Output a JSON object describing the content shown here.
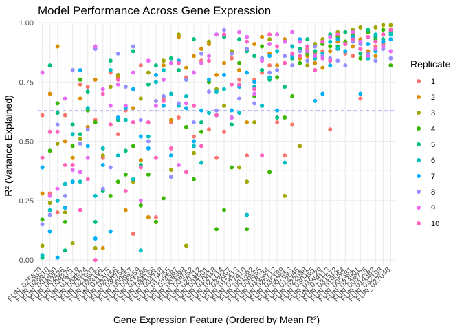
{
  "chart_data": {
    "type": "scatter",
    "title": "Model Performance Across Gene Expression",
    "xlabel": "Gene Expression Feature (Ordered by Mean R²)",
    "ylabel": "R² (Variance Explained)",
    "ylim": [
      -0.02,
      1.0
    ],
    "yticks": [
      0.0,
      0.25,
      0.5,
      0.75,
      1.0
    ],
    "ytick_labels": [
      "0.00",
      "0.25",
      "0.50",
      "0.75",
      "1.00"
    ],
    "reference_line": {
      "y": 0.628,
      "style": "dashed",
      "color": "#0000ff"
    },
    "legend": {
      "title": "Replicate",
      "position": "right"
    },
    "grid": true,
    "categories": [
      "FUN_025670",
      "FUN_028610",
      "FUN_001490",
      "FUN_002426",
      "FUN_009276",
      "FUN_013219",
      "FUN_004624",
      "FUN_021903",
      "FUN_028166",
      "FUN_011575",
      "FUN_020156",
      "FUN_030754",
      "FUN_000657",
      "FUN_006659",
      "FUN_015096",
      "FUN_034166",
      "FUN_004718",
      "FUN_017255",
      "FUN_024587",
      "FUN_003598",
      "FUN_008052",
      "FUN_020312",
      "FUN_004901",
      "FUN_010418",
      "FUN_021714",
      "FUN_033067",
      "FUN_015413",
      "FUN_027410",
      "FUN_001892",
      "FUN_009655",
      "FUN_018234",
      "FUN_026712",
      "FUN_035189",
      "FUN_007653",
      "FUN_012946",
      "FUN_022038",
      "FUN_030465",
      "FUN_016729",
      "FUN_029113",
      "FUN_031572",
      "FUN_019064",
      "FUN_005381",
      "FUN_023901",
      "FUN_008726",
      "FUN_014382",
      "FUN_032198",
      "FUN_027048"
    ],
    "visible_tick_labels": [
      "FUN_025670",
      "FUN_028610",
      "FUN_001490",
      "FUN_002426",
      "FUN_009276",
      "FUN_013219",
      "FUN_004624",
      "FUN_021903",
      "FUN_028166",
      "FUN_011575",
      "FUN_020156",
      "FUN_030754",
      "FUN_000657",
      "FUN_006659",
      "FUN_015096",
      "FUN_034166",
      "FUN_004718",
      "FUN_017255",
      "FUN_024587",
      "FUN_003598",
      "FUN_008052",
      "FUN_020312",
      "FUN_004901",
      "FUN_010418",
      "FUN_021714",
      "FUN_033067",
      "FUN_015413",
      "FUN_027410",
      "FUN_001892",
      "FUN_009655",
      "FUN_018234",
      "FUN_026712",
      "FUN_035189",
      "FUN_007653",
      "FUN_012946",
      "FUN_022038",
      "FUN_030465",
      "FUN_016729",
      "FUN_029113",
      "FUN_031572",
      "FUN_019064",
      "FUN_005381",
      "FUN_023901",
      "FUN_008726",
      "FUN_014382",
      "FUN_032198",
      "FUN_027048"
    ],
    "series": [
      {
        "name": "1",
        "color": "#F8766D",
        "values": [
          0.61,
          0.28,
          0.2,
          0.61,
          0.48,
          0.74,
          0.73,
          0.59,
          0.43,
          0.79,
          0.53,
          0.63,
          0.11,
          0.82,
          0.18,
          0.18,
          0.68,
          0.58,
          0.6,
          0.77,
          0.52,
          0.84,
          0.55,
          0.43,
          0.54,
          0.85,
          0.76,
          0.44,
          0.76,
          0.79,
          0.82,
          0.58,
          0.44,
          0.57,
          0.48,
          0.89,
          0.87,
          0.88,
          0.55,
          0.89,
          0.87,
          0.86,
          0.68,
          0.88,
          0.9,
          0.91,
          0.97
        ]
      },
      {
        "name": "2",
        "color": "#D89000",
        "values": [
          0.28,
          0.7,
          0.9,
          0.5,
          0.43,
          0.68,
          0.56,
          0.76,
          0.05,
          0.57,
          0.77,
          0.21,
          0.64,
          0.42,
          0.18,
          0.67,
          0.82,
          0.59,
          0.94,
          0.81,
          0.86,
          0.89,
          0.91,
          0.78,
          0.83,
          0.87,
          0.8,
          0.58,
          0.91,
          0.94,
          0.87,
          0.82,
          0.93,
          0.9,
          0.85,
          0.86,
          0.83,
          0.81,
          0.88,
          0.92,
          0.96,
          0.9,
          0.93,
          0.88,
          0.86,
          0.95,
          0.96
        ]
      },
      {
        "name": "3",
        "color": "#A3A500",
        "values": [
          0.06,
          0.24,
          0.49,
          0.2,
          0.07,
          0.51,
          0.64,
          0.05,
          0.44,
          0.73,
          0.78,
          0.59,
          0.33,
          0.68,
          0.79,
          0.16,
          0.84,
          0.38,
          0.95,
          0.06,
          0.45,
          0.41,
          0.92,
          0.72,
          0.65,
          0.88,
          0.39,
          0.33,
          0.58,
          0.85,
          0.93,
          0.95,
          0.27,
          0.96,
          0.48,
          0.82,
          0.91,
          0.93,
          0.9,
          0.96,
          0.92,
          0.97,
          0.98,
          0.96,
          0.98,
          0.99,
          0.99
        ]
      },
      {
        "name": "4",
        "color": "#39B600",
        "values": [
          0.17,
          0.46,
          0.66,
          0.16,
          0.48,
          0.76,
          0.63,
          0.58,
          0.47,
          0.27,
          0.33,
          0.36,
          0.48,
          0.23,
          0.36,
          0.16,
          0.26,
          0.35,
          0.84,
          0.56,
          0.34,
          0.54,
          0.75,
          0.13,
          0.21,
          0.39,
          0.83,
          0.13,
          0.69,
          0.9,
          0.37,
          0.77,
          0.6,
          0.69,
          0.83,
          0.87,
          0.85,
          0.91,
          0.9,
          0.94,
          0.92,
          0.95,
          0.85,
          0.96,
          0.93,
          0.97,
          0.82
        ]
      },
      {
        "name": "5",
        "color": "#00BF7D",
        "values": [
          0.01,
          0.82,
          0.62,
          0.04,
          0.57,
          0.53,
          0.71,
          0.16,
          0.29,
          0.84,
          0.59,
          0.46,
          0.88,
          0.4,
          0.74,
          0.82,
          0.69,
          0.85,
          0.8,
          0.76,
          0.93,
          0.58,
          0.76,
          0.95,
          0.94,
          0.57,
          0.93,
          0.88,
          0.86,
          0.8,
          0.76,
          0.6,
          0.73,
          0.85,
          0.89,
          0.93,
          0.88,
          0.92,
          0.95,
          0.9,
          0.96,
          0.93,
          0.87,
          0.97,
          0.94,
          0.93,
          0.96
        ]
      },
      {
        "name": "6",
        "color": "#00BFC4",
        "values": [
          0.02,
          0.21,
          0.25,
          0.32,
          0.53,
          0.33,
          0.64,
          0.27,
          0.47,
          0.8,
          0.44,
          0.59,
          0.34,
          0.04,
          0.52,
          0.75,
          0.8,
          0.7,
          0.65,
          0.69,
          0.48,
          0.41,
          0.62,
          0.71,
          0.72,
          0.6,
          0.62,
          0.19,
          0.73,
          0.65,
          0.77,
          0.88,
          0.41,
          0.9,
          0.92,
          0.88,
          0.85,
          0.87,
          0.92,
          0.89,
          0.91,
          0.94,
          0.89,
          0.85,
          0.95,
          0.92,
          0.95
        ]
      },
      {
        "name": "7",
        "color": "#00B0F6",
        "values": [
          0.39,
          0.12,
          0.01,
          0.22,
          0.33,
          0.8,
          0.48,
          0.09,
          0.4,
          0.12,
          0.6,
          0.64,
          0.72,
          0.52,
          0.47,
          0.78,
          0.65,
          0.44,
          0.84,
          0.64,
          0.5,
          0.63,
          0.76,
          0.61,
          0.78,
          0.63,
          0.73,
          0.79,
          0.75,
          0.85,
          0.86,
          0.63,
          0.92,
          0.86,
          0.93,
          0.9,
          0.67,
          0.7,
          0.82,
          0.93,
          0.88,
          0.94,
          0.7,
          0.91,
          0.88,
          0.92,
          0.93
        ]
      },
      {
        "name": "8",
        "color": "#9590FF",
        "values": [
          0.15,
          0.19,
          0.57,
          0.27,
          0.8,
          0.49,
          0.55,
          0.89,
          0.3,
          0.39,
          0.87,
          0.73,
          0.9,
          0.59,
          0.5,
          0.67,
          0.69,
          0.35,
          0.66,
          0.76,
          0.58,
          0.87,
          0.71,
          0.63,
          0.97,
          0.87,
          0.68,
          0.89,
          0.66,
          0.85,
          0.79,
          0.8,
          0.86,
          0.82,
          0.88,
          0.84,
          0.9,
          0.86,
          0.85,
          0.84,
          0.82,
          0.92,
          0.91,
          0.87,
          0.84,
          0.89,
          0.85
        ]
      },
      {
        "name": "9",
        "color": "#E76BF3",
        "values": [
          0.79,
          0.27,
          0.3,
          0.68,
          0.38,
          0.37,
          0.43,
          0.9,
          0.72,
          0.65,
          0.74,
          0.65,
          0.79,
          0.25,
          0.84,
          0.65,
          0.76,
          0.83,
          0.4,
          0.66,
          0.79,
          0.83,
          0.86,
          0.95,
          0.95,
          0.6,
          0.96,
          0.94,
          0.7,
          0.84,
          0.91,
          0.95,
          0.92,
          0.96,
          0.92,
          0.88,
          0.86,
          0.85,
          0.94,
          0.95,
          0.91,
          0.96,
          0.92,
          0.86,
          0.89,
          0.9,
          0.88
        ]
      },
      {
        "name": "10",
        "color": "#FF62BC",
        "values": [
          0.43,
          0.54,
          0.54,
          0.4,
          0.4,
          0.21,
          0.34,
          0.0,
          0.7,
          0.57,
          0.76,
          0.29,
          0.58,
          0.39,
          0.58,
          0.43,
          0.67,
          0.47,
          0.83,
          0.37,
          0.65,
          0.48,
          0.84,
          0.61,
          0.95,
          0.74,
          0.74,
          0.92,
          0.72,
          0.44,
          0.95,
          0.9,
          0.83,
          0.87,
          0.86,
          0.9,
          0.8,
          0.92,
          0.84,
          0.95,
          0.91,
          0.93,
          0.89,
          0.94,
          0.92,
          0.95,
          0.97
        ]
      }
    ]
  }
}
